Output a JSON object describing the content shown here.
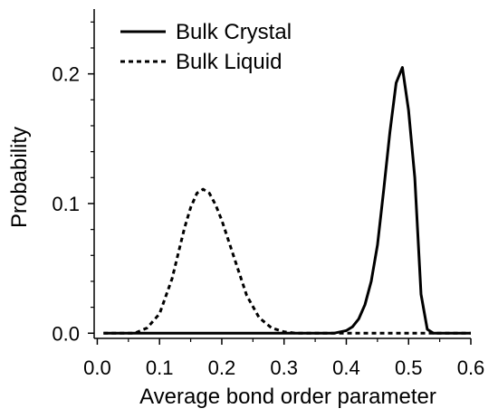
{
  "chart_data": {
    "type": "line",
    "title": "",
    "xlabel": "Average bond order parameter",
    "ylabel": "Probability",
    "xlim": [
      -0.005,
      0.6
    ],
    "ylim": [
      -0.004,
      0.25
    ],
    "x_ticks": [
      "0.0",
      "0.1",
      "0.2",
      "0.3",
      "0.4",
      "0.5",
      "0.6"
    ],
    "y_ticks": [
      "0.0",
      "0.1",
      "0.2"
    ],
    "grid": false,
    "legend_position": "top-left",
    "series": [
      {
        "name": "Bulk Crystal",
        "style": "solid",
        "color": "#000000",
        "x": [
          0.01,
          0.38,
          0.4,
          0.41,
          0.42,
          0.43,
          0.44,
          0.45,
          0.46,
          0.47,
          0.48,
          0.49,
          0.5,
          0.51,
          0.52,
          0.53,
          0.54,
          0.6
        ],
        "y": [
          0.0,
          0.0,
          0.002,
          0.005,
          0.011,
          0.022,
          0.04,
          0.068,
          0.11,
          0.155,
          0.193,
          0.205,
          0.172,
          0.12,
          0.03,
          0.003,
          0.0,
          0.0
        ]
      },
      {
        "name": "Bulk Liquid",
        "style": "dashed",
        "color": "#000000",
        "x": [
          0.01,
          0.06,
          0.08,
          0.1,
          0.12,
          0.14,
          0.15,
          0.16,
          0.17,
          0.18,
          0.19,
          0.2,
          0.22,
          0.24,
          0.26,
          0.28,
          0.3,
          0.32,
          0.4,
          0.5,
          0.6
        ],
        "y": [
          0.0,
          0.0,
          0.004,
          0.015,
          0.042,
          0.081,
          0.097,
          0.108,
          0.111,
          0.108,
          0.099,
          0.087,
          0.058,
          0.029,
          0.012,
          0.004,
          0.001,
          0.0,
          0.0,
          0.0,
          0.0
        ]
      }
    ]
  }
}
